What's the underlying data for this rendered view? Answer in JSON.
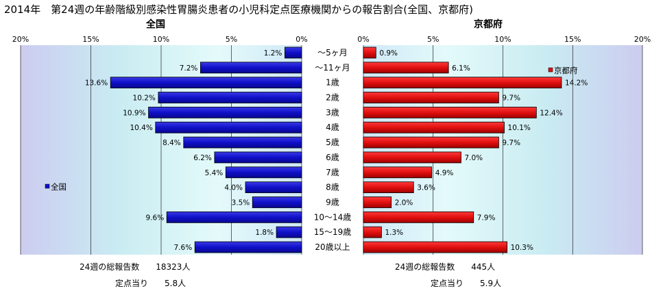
{
  "title": "2014年　第24週の年齢階級別感染性胃腸炎患者の小児科定点医療機関からの報告割合(全国、京都府)",
  "colors": {
    "national": "#1010c8",
    "kyoto": "#e01010",
    "plot_bg": "#cfe8f7",
    "plot_band": "#dff6f6",
    "plot_edge": "#ccccf0"
  },
  "chart_data": [
    {
      "type": "bar",
      "orientation": "horizontal",
      "direction": "leftward",
      "title": "全国",
      "xlim": [
        0,
        20
      ],
      "xticks": [
        "20%",
        "15%",
        "10%",
        "5%",
        "0%"
      ],
      "xtick_values": [
        20,
        15,
        10,
        5,
        0
      ],
      "categories": [
        "～5ヶ月",
        "～11ヶ月",
        "1歳",
        "2歳",
        "3歳",
        "4歳",
        "5歳",
        "6歳",
        "7歳",
        "8歳",
        "9歳",
        "10～14歳",
        "15～19歳",
        "20歳以上"
      ],
      "series": [
        {
          "name": "全国",
          "values": [
            1.2,
            7.2,
            13.6,
            10.2,
            10.9,
            10.4,
            8.4,
            6.2,
            5.4,
            4.0,
            3.5,
            9.6,
            1.8,
            7.6
          ],
          "labels": [
            "1.2%",
            "7.2%",
            "13.6%",
            "10.2%",
            "10.9%",
            "10.4%",
            "8.4%",
            "6.2%",
            "5.4%",
            "4.0%",
            "3.5%",
            "9.6%",
            "1.8%",
            "7.6%"
          ]
        }
      ],
      "legend": "left",
      "grid": true
    },
    {
      "type": "bar",
      "orientation": "horizontal",
      "direction": "rightward",
      "title": "京都府",
      "xlim": [
        0,
        20
      ],
      "xticks": [
        "0%",
        "5%",
        "10%",
        "15%",
        "20%"
      ],
      "xtick_values": [
        0,
        5,
        10,
        15,
        20
      ],
      "categories": [
        "～5ヶ月",
        "～11ヶ月",
        "1歳",
        "2歳",
        "3歳",
        "4歳",
        "5歳",
        "6歳",
        "7歳",
        "8歳",
        "9歳",
        "10～14歳",
        "15～19歳",
        "20歳以上"
      ],
      "series": [
        {
          "name": "京都府",
          "values": [
            0.9,
            6.1,
            14.2,
            9.7,
            12.4,
            10.1,
            9.7,
            7.0,
            4.9,
            3.6,
            2.0,
            7.9,
            1.3,
            10.3
          ],
          "labels": [
            "0.9%",
            "6.1%",
            "14.2%",
            "9.7%",
            "12.4%",
            "10.1%",
            "9.7%",
            "7.0%",
            "4.9%",
            "3.6%",
            "2.0%",
            "7.9%",
            "1.3%",
            "10.3%"
          ]
        }
      ],
      "legend": "top-right",
      "grid": true
    }
  ],
  "footer": {
    "national_total": "24週の総報告数　　18323人",
    "national_per": "定点当り　　5.8人",
    "kyoto_total": "24週の総報告数　　445人",
    "kyoto_per": "定点当り　　5.9人"
  }
}
